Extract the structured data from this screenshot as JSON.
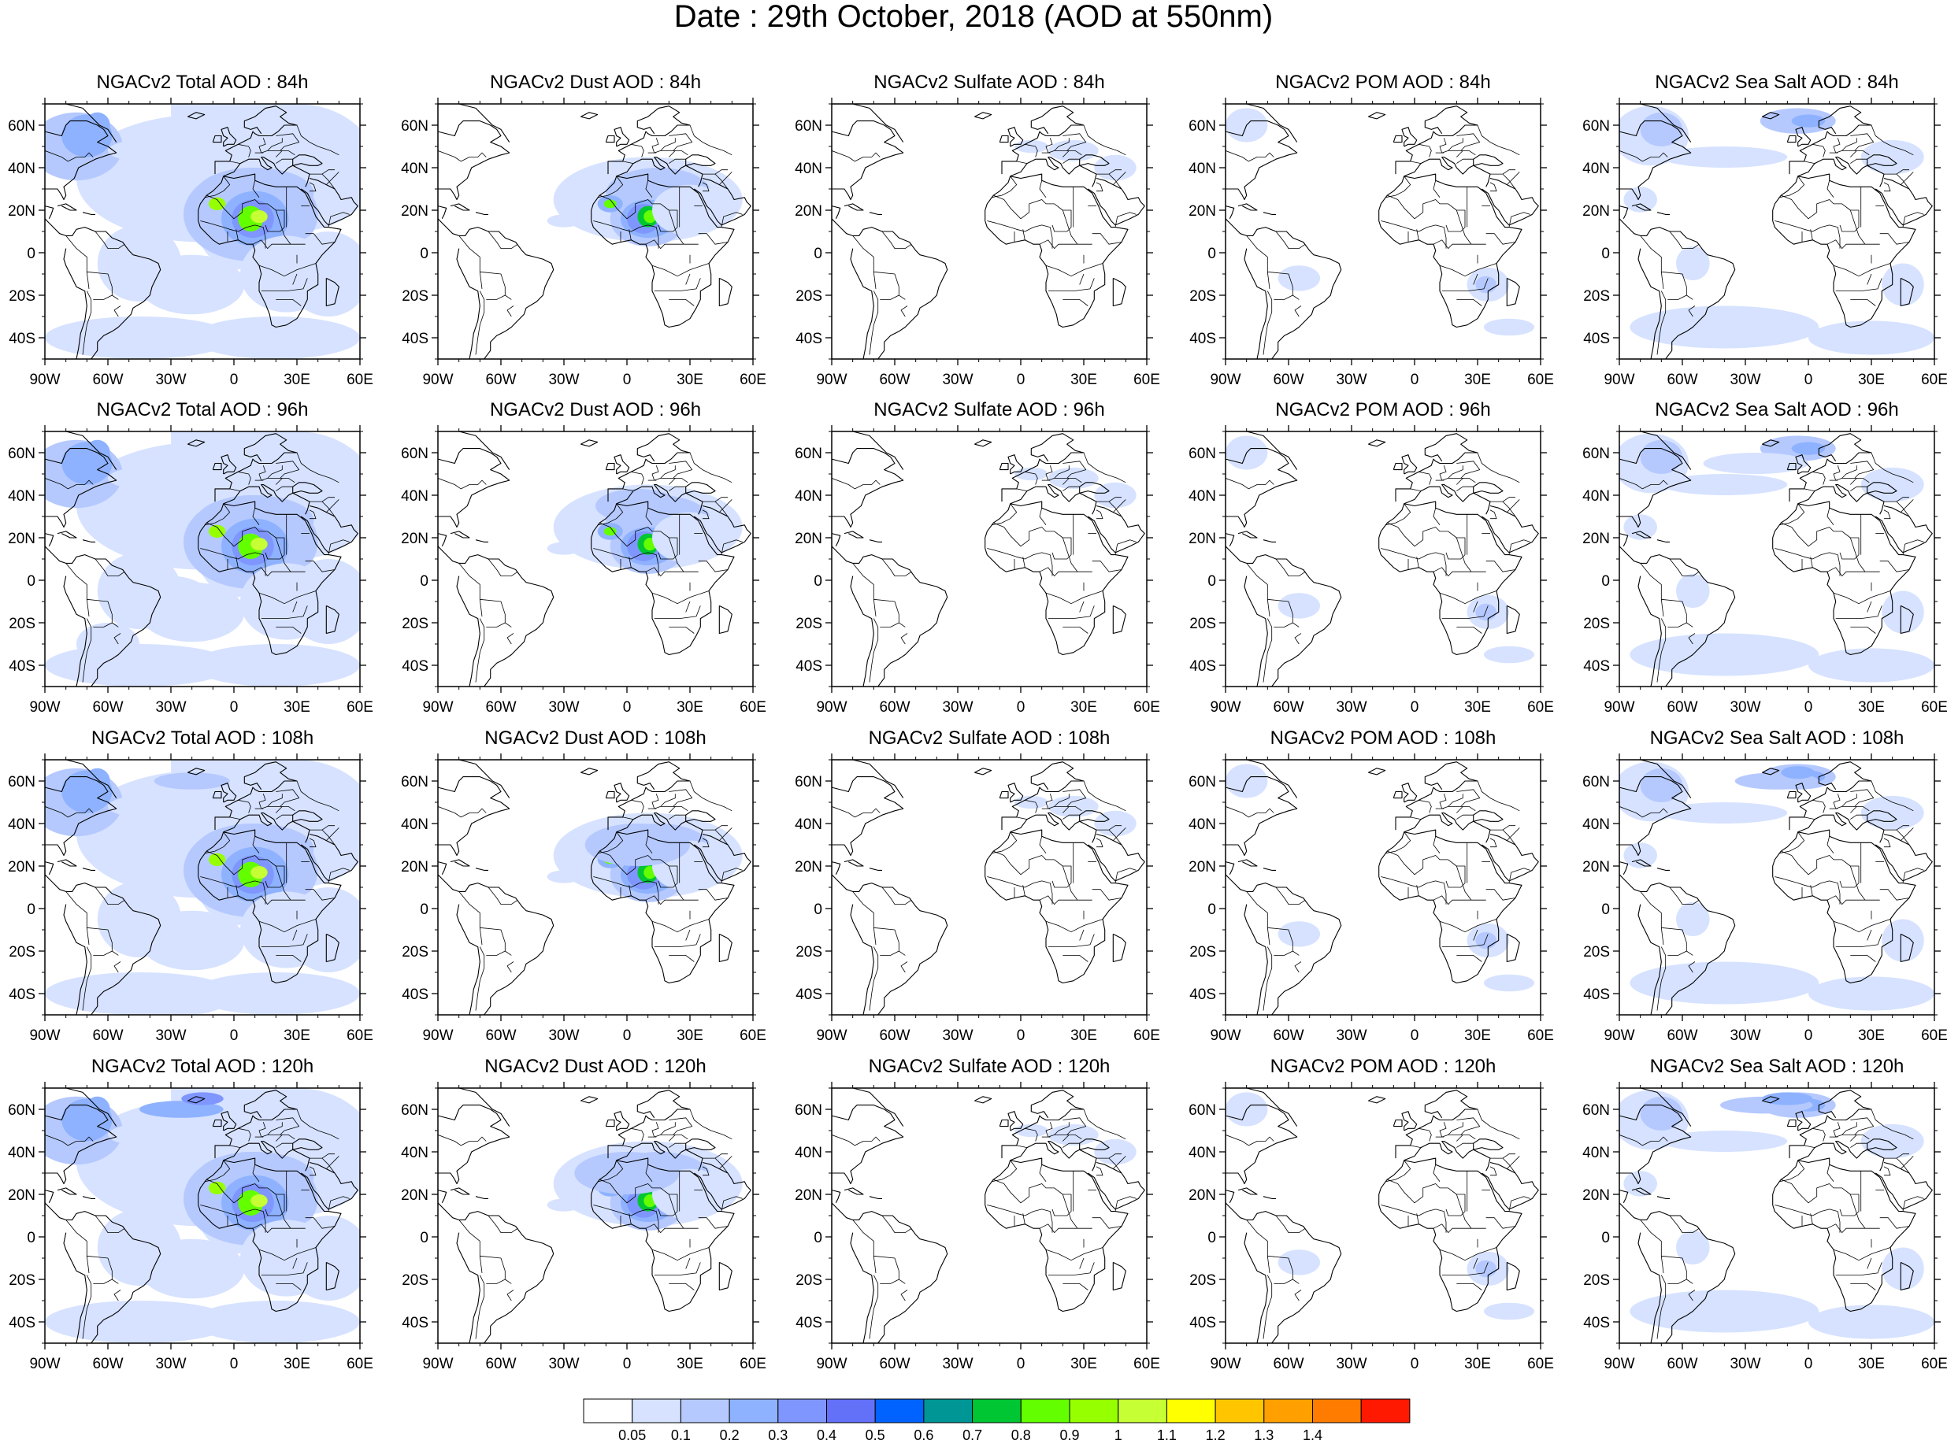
{
  "title": "Date : 29th October, 2018 (AOD at 550nm)",
  "axis": {
    "lat_labels": [
      "60N",
      "40N",
      "20N",
      "0",
      "20S",
      "40S"
    ],
    "lon_labels": [
      "90W",
      "60W",
      "30W",
      "0",
      "30E",
      "60E"
    ]
  },
  "panels": [
    {
      "title": "NGACv2 Total AOD : 84h",
      "species": "total",
      "hour": 84
    },
    {
      "title": "NGACv2 Dust AOD : 84h",
      "species": "dust",
      "hour": 84
    },
    {
      "title": "NGACv2 Sulfate AOD : 84h",
      "species": "sulfate",
      "hour": 84
    },
    {
      "title": "NGACv2 POM AOD : 84h",
      "species": "pom",
      "hour": 84
    },
    {
      "title": "NGACv2 Sea Salt AOD : 84h",
      "species": "seasalt",
      "hour": 84
    },
    {
      "title": "NGACv2 Total AOD : 96h",
      "species": "total",
      "hour": 96
    },
    {
      "title": "NGACv2 Dust AOD : 96h",
      "species": "dust",
      "hour": 96
    },
    {
      "title": "NGACv2 Sulfate AOD : 96h",
      "species": "sulfate",
      "hour": 96
    },
    {
      "title": "NGACv2 POM AOD : 96h",
      "species": "pom",
      "hour": 96
    },
    {
      "title": "NGACv2 Sea Salt AOD : 96h",
      "species": "seasalt",
      "hour": 96
    },
    {
      "title": "NGACv2 Total AOD : 108h",
      "species": "total",
      "hour": 108
    },
    {
      "title": "NGACv2 Dust AOD : 108h",
      "species": "dust",
      "hour": 108
    },
    {
      "title": "NGACv2 Sulfate AOD : 108h",
      "species": "sulfate",
      "hour": 108
    },
    {
      "title": "NGACv2 POM AOD : 108h",
      "species": "pom",
      "hour": 108
    },
    {
      "title": "NGACv2 Sea Salt AOD : 108h",
      "species": "seasalt",
      "hour": 108
    },
    {
      "title": "NGACv2 Total AOD : 120h",
      "species": "total",
      "hour": 120
    },
    {
      "title": "NGACv2 Dust AOD : 120h",
      "species": "dust",
      "hour": 120
    },
    {
      "title": "NGACv2 Sulfate AOD : 120h",
      "species": "sulfate",
      "hour": 120
    },
    {
      "title": "NGACv2 POM AOD : 120h",
      "species": "pom",
      "hour": 120
    },
    {
      "title": "NGACv2 Sea Salt  AOD : 120h",
      "species": "seasalt",
      "hour": 120
    }
  ],
  "colorbar": {
    "labels": [
      "0.05",
      "0.1",
      "0.2",
      "0.3",
      "0.4",
      "0.5",
      "0.6",
      "0.7",
      "0.8",
      "0.9",
      "1",
      "1.1",
      "1.2",
      "1.3",
      "1.4"
    ],
    "colors": [
      "#ffffff",
      "#d6e2ff",
      "#b5c9ff",
      "#8eb2ff",
      "#7f96ff",
      "#6370f8",
      "#0063ff",
      "#009696",
      "#00c633",
      "#63ff00",
      "#96ff00",
      "#c6ff33",
      "#ffff00",
      "#ffc600",
      "#ffa000",
      "#ff7c00",
      "#ff1900"
    ]
  },
  "chart_data": {
    "type": "heatmap",
    "title": "Date : 29th October, 2018 (AOD at 550nm)",
    "variable": "AOD at 550nm",
    "date": "29th October, 2018",
    "lon_range": [
      -90,
      60
    ],
    "lat_range": [
      -50,
      70
    ],
    "lat_ticks": [
      60,
      40,
      20,
      0,
      -20,
      -40
    ],
    "lon_ticks": [
      -90,
      -60,
      -30,
      0,
      30,
      60
    ],
    "rows_forecast_hours": [
      84,
      96,
      108,
      120
    ],
    "columns_species": [
      "Total",
      "Dust",
      "Sulfate",
      "POM",
      "Sea Salt"
    ],
    "levels": [
      0.05,
      0.1,
      0.2,
      0.3,
      0.4,
      0.5,
      0.6,
      0.7,
      0.8,
      0.9,
      1,
      1.1,
      1.2,
      1.3,
      1.4
    ],
    "features": {
      "dust": [
        {
          "lon": 10,
          "lat": 17,
          "max_aod": 0.9
        },
        {
          "lon": -9,
          "lat": 24,
          "max_aod": 0.8
        }
      ],
      "sulfate": [
        {
          "lon": 30,
          "lat": 48,
          "max_aod": 0.1
        }
      ],
      "pom": [
        {
          "lon": 35,
          "lat": -15,
          "max_aod": 0.2
        },
        {
          "lon": -55,
          "lat": -12,
          "max_aod": 0.1
        }
      ],
      "seasalt": [
        {
          "lon": 0,
          "lat": 60,
          "max_aod": 0.3
        },
        {
          "lon": -70,
          "lat": 55,
          "max_aod": 0.2
        }
      ]
    }
  }
}
